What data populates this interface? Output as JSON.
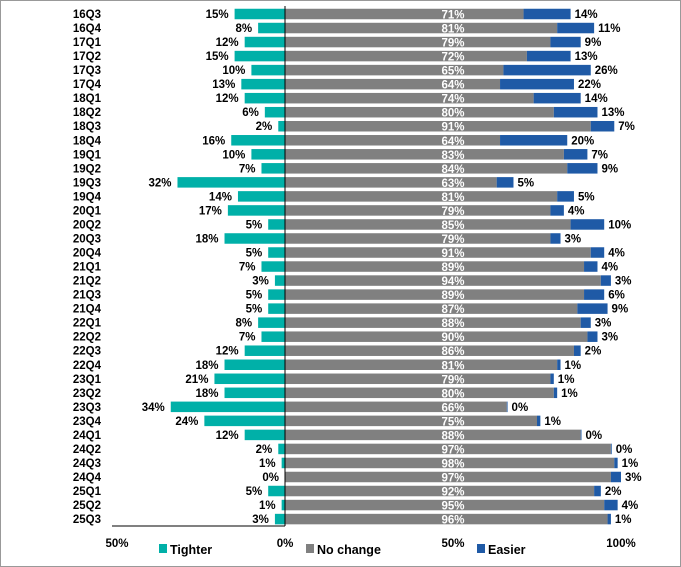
{
  "chart_data": {
    "type": "bar",
    "stacked": "diverging",
    "categories": [
      "16Q3",
      "16Q4",
      "17Q1",
      "17Q2",
      "17Q3",
      "17Q4",
      "18Q1",
      "18Q2",
      "18Q3",
      "18Q4",
      "19Q1",
      "19Q2",
      "19Q3",
      "19Q4",
      "20Q1",
      "20Q2",
      "20Q3",
      "20Q4",
      "21Q1",
      "21Q2",
      "21Q3",
      "21Q4",
      "22Q1",
      "22Q2",
      "22Q3",
      "22Q4",
      "23Q1",
      "23Q2",
      "23Q3",
      "23Q4",
      "24Q1",
      "24Q2",
      "24Q3",
      "24Q4",
      "25Q1",
      "25Q2",
      "25Q3"
    ],
    "series": [
      {
        "name": "Tighter",
        "color": "#00b0a8",
        "values": [
          15,
          8,
          12,
          15,
          10,
          13,
          12,
          6,
          2,
          16,
          10,
          7,
          32,
          14,
          17,
          5,
          18,
          5,
          7,
          3,
          5,
          5,
          8,
          7,
          12,
          18,
          21,
          18,
          34,
          24,
          12,
          2,
          1,
          0,
          5,
          1,
          3
        ]
      },
      {
        "name": "No change",
        "color": "#808080",
        "values": [
          71,
          81,
          79,
          72,
          65,
          64,
          74,
          80,
          91,
          64,
          83,
          84,
          63,
          81,
          79,
          85,
          79,
          91,
          89,
          94,
          89,
          87,
          88,
          90,
          86,
          81,
          79,
          80,
          66,
          75,
          88,
          97,
          98,
          97,
          92,
          95,
          96
        ]
      },
      {
        "name": "Easier",
        "color": "#1f5aa6",
        "values": [
          14,
          11,
          9,
          13,
          26,
          22,
          14,
          13,
          7,
          20,
          7,
          9,
          5,
          5,
          4,
          10,
          3,
          4,
          4,
          3,
          6,
          9,
          3,
          3,
          2,
          1,
          1,
          1,
          0,
          1,
          0,
          0,
          1,
          3,
          2,
          4,
          1
        ]
      }
    ],
    "xticks": [
      "50%",
      "0%",
      "50%",
      "100%"
    ],
    "xlim": [
      -50,
      100
    ],
    "legend": "bottom",
    "grid": false
  }
}
